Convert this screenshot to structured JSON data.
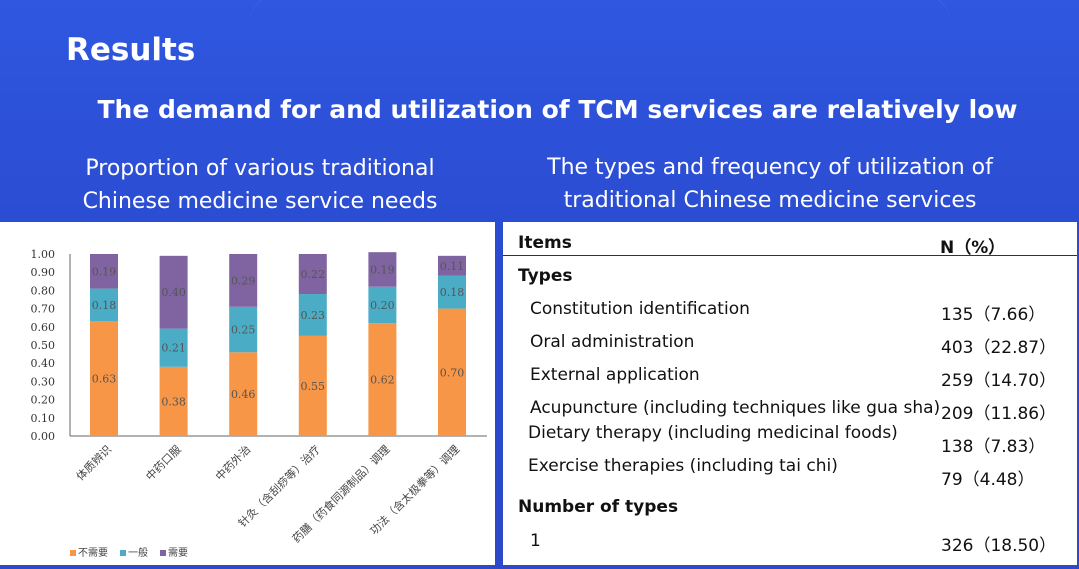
{
  "slide": {
    "title": "Results",
    "subtitle": "The demand for and utilization of TCM services are relatively low",
    "left_heading": [
      "Proportion of various traditional",
      "Chinese medicine service needs"
    ],
    "right_heading": [
      "The types and frequency of utilization of",
      "traditional Chinese medicine services"
    ]
  },
  "chart_data": {
    "type": "bar",
    "stacked": true,
    "categories": [
      "体质辨识",
      "中药口服",
      "中药外治",
      "针灸（含刮痧等）治疗",
      "药膳（药食同源制品）调理",
      "功法（含太极拳等）调理"
    ],
    "series": [
      {
        "name": "不需要",
        "color": "#f79646",
        "values": [
          0.63,
          0.38,
          0.46,
          0.55,
          0.62,
          0.7
        ]
      },
      {
        "name": "一般",
        "color": "#4bacc6",
        "values": [
          0.18,
          0.21,
          0.25,
          0.23,
          0.2,
          0.18
        ]
      },
      {
        "name": "需要",
        "color": "#8064a2",
        "values": [
          0.19,
          0.4,
          0.29,
          0.22,
          0.19,
          0.11
        ]
      }
    ],
    "yticks": [
      "0.00",
      "0.10",
      "0.20",
      "0.30",
      "0.40",
      "0.50",
      "0.60",
      "0.70",
      "0.80",
      "0.90",
      "1.00"
    ],
    "ylim": [
      0,
      1
    ],
    "legend": "bottom-left"
  },
  "table": {
    "header": {
      "items": "Items",
      "n": "N（%）"
    },
    "section1": "Types",
    "rows": [
      {
        "item": "Constitution identification",
        "n": "135（7.66）"
      },
      {
        "item": "Oral administration",
        "n": "403（22.87）"
      },
      {
        "item": "External application",
        "n": "259（14.70）"
      },
      {
        "item": "Acupuncture (including techniques like gua sha)",
        "n": "209（11.86）"
      },
      {
        "item": "Dietary therapy (including medicinal foods)",
        "n": "138（7.83）"
      },
      {
        "item": "Exercise therapies (including tai chi)",
        "n": "79（4.48）"
      }
    ],
    "section2": "Number of types",
    "rows2": [
      {
        "item": "1",
        "n": "326（18.50）"
      }
    ]
  }
}
